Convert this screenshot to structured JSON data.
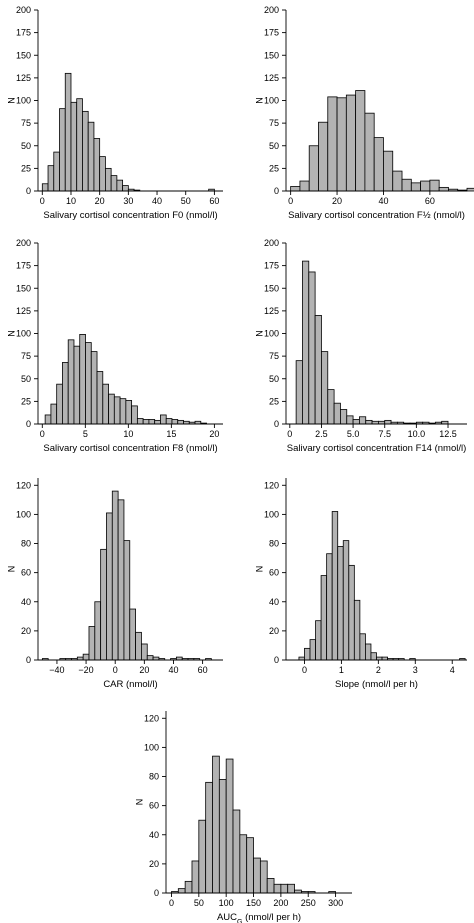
{
  "chart_data": [
    {
      "type": "bar",
      "panel": "F0",
      "xlabel": "Salivary cortisol concentration F0 (nmol/l)",
      "ylabel": "N",
      "xlim": [
        -1.5,
        63
      ],
      "ylim": [
        0,
        200
      ],
      "xticks": [
        0,
        10,
        20,
        30,
        40,
        50,
        60
      ],
      "yticks": [
        0,
        25,
        50,
        75,
        100,
        125,
        150,
        175,
        200
      ],
      "bin_width": 2,
      "bin_start": 0,
      "values": [
        8,
        28,
        43,
        91,
        130,
        98,
        102,
        88,
        76,
        58,
        38,
        25,
        17,
        12,
        6,
        2,
        1,
        0,
        0,
        0,
        0,
        0,
        0,
        0,
        0,
        0,
        0,
        0,
        0,
        2
      ]
    },
    {
      "type": "bar",
      "panel": "F1/2",
      "xlabel": "Salivary cortisol concentration F½ (nmol/l)",
      "ylabel": "N",
      "xlim": [
        -2,
        76
      ],
      "ylim": [
        0,
        200
      ],
      "xticks": [
        0,
        20,
        40,
        60
      ],
      "yticks": [
        0,
        25,
        50,
        75,
        100,
        125,
        150,
        175,
        200
      ],
      "bin_width": 4,
      "bin_start": 0,
      "values": [
        5,
        11,
        50,
        76,
        104,
        103,
        106,
        111,
        86,
        59,
        44,
        22,
        13,
        9,
        11,
        12,
        4,
        2,
        1,
        3
      ]
    },
    {
      "type": "bar",
      "panel": "F8",
      "xlabel": "Salivary cortisol concentration F8 (nmol/l)",
      "ylabel": "N",
      "xlim": [
        -0.5,
        21
      ],
      "ylim": [
        0,
        200
      ],
      "xticks": [
        0,
        5,
        10,
        15,
        20
      ],
      "yticks": [
        0,
        25,
        50,
        75,
        100,
        125,
        150,
        175,
        200
      ],
      "bin_width": 0.67,
      "bin_start": 0.33,
      "values": [
        10,
        22,
        44,
        68,
        93,
        86,
        99,
        90,
        80,
        58,
        44,
        33,
        30,
        28,
        26,
        20,
        6,
        5,
        5,
        4,
        10,
        6,
        5,
        4,
        3,
        2,
        3,
        1
      ]
    },
    {
      "type": "bar",
      "panel": "F14",
      "xlabel": "Salivary cortisol concentration F14 (nmol/l)",
      "ylabel": "N",
      "xlim": [
        -0.3,
        14
      ],
      "ylim": [
        0,
        200
      ],
      "xticks": [
        0,
        2.5,
        5.0,
        7.5,
        10.0,
        12.5
      ],
      "yticks": [
        0,
        25,
        50,
        75,
        100,
        125,
        150,
        175,
        200
      ],
      "bin_width": 0.5,
      "bin_start": 0.5,
      "values": [
        70,
        180,
        168,
        120,
        80,
        38,
        23,
        16,
        9,
        5,
        8,
        4,
        3,
        3,
        4,
        2,
        2,
        1,
        1,
        2,
        2,
        1,
        2,
        3
      ]
    },
    {
      "type": "bar",
      "panel": "CAR",
      "xlabel": "CAR (nmol/l)",
      "ylabel": "N",
      "xlim": [
        -53,
        74
      ],
      "ylim": [
        0,
        125
      ],
      "xticks": [
        -40,
        -20,
        0,
        20,
        40,
        60
      ],
      "yticks": [
        0,
        20,
        40,
        60,
        80,
        100,
        120
      ],
      "bin_width": 4,
      "bin_start": -50,
      "values": [
        1,
        0,
        0,
        1,
        1,
        1,
        2,
        4,
        23,
        40,
        76,
        101,
        116,
        110,
        82,
        35,
        19,
        11,
        3,
        2,
        1,
        0,
        1,
        2,
        1,
        1,
        1,
        0,
        1
      ]
    },
    {
      "type": "bar",
      "panel": "Slope",
      "xlabel": "Slope (nmol/l per h)",
      "ylabel": "N",
      "xlim": [
        -0.5,
        4.4
      ],
      "ylim": [
        0,
        125
      ],
      "xticks": [
        0,
        1,
        2,
        3,
        4
      ],
      "yticks": [
        0,
        20,
        40,
        60,
        80,
        100,
        120
      ],
      "bin_width": 0.15,
      "bin_start": -0.15,
      "values": [
        2,
        8,
        14,
        27,
        58,
        73,
        102,
        78,
        82,
        65,
        41,
        18,
        11,
        5,
        2,
        2,
        1,
        1,
        1,
        0,
        1,
        0,
        0,
        0,
        0,
        0,
        0,
        0,
        0,
        1
      ]
    },
    {
      "type": "bar",
      "panel": "AUCG",
      "xlabel": "AUC",
      "xlabel_sub": "G",
      "xlabel_suffix": " (nmol/l per h)",
      "ylabel": "N",
      "xlim": [
        -10,
        330
      ],
      "ylim": [
        0,
        125
      ],
      "xticks": [
        0,
        50,
        100,
        150,
        200,
        250,
        300
      ],
      "yticks": [
        0,
        20,
        40,
        60,
        80,
        100,
        120
      ],
      "bin_width": 12.5,
      "bin_start": 0,
      "values": [
        1,
        3,
        8,
        22,
        50,
        76,
        94,
        78,
        92,
        57,
        40,
        38,
        24,
        22,
        10,
        6,
        6,
        6,
        2,
        1,
        1,
        0,
        0,
        1
      ]
    }
  ]
}
